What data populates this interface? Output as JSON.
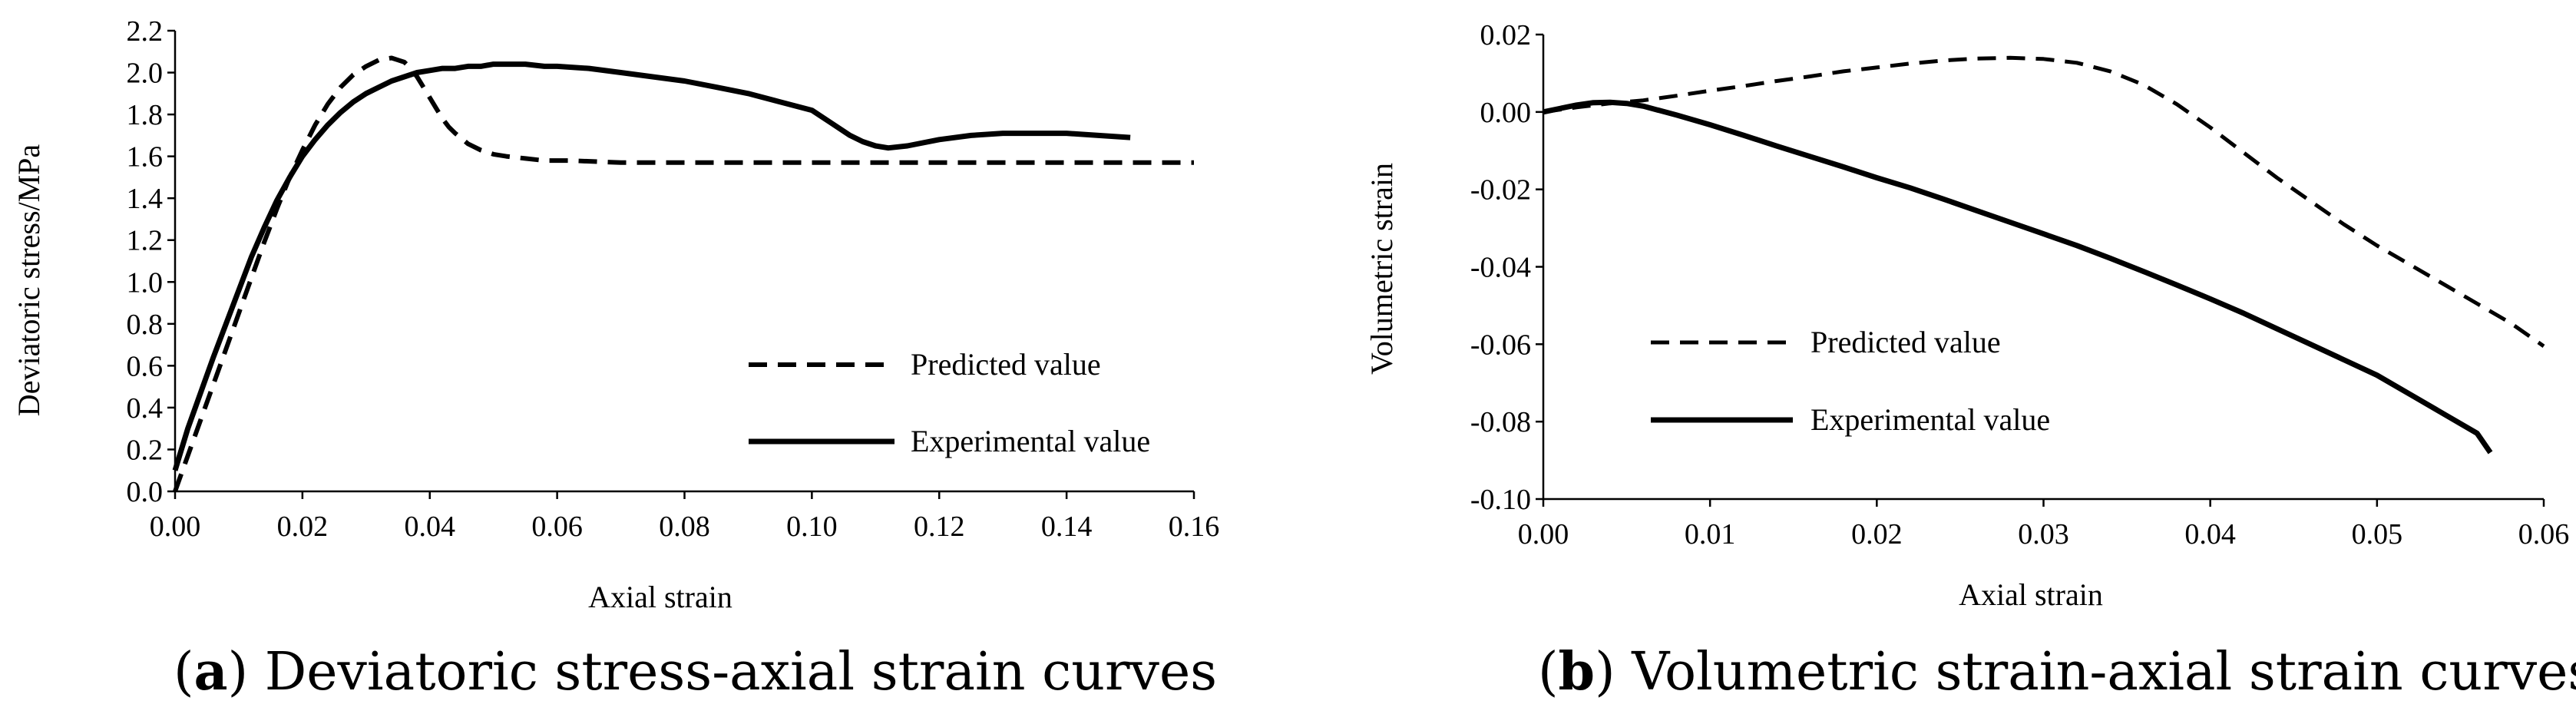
{
  "chart_data": [
    {
      "id": "a",
      "type": "line",
      "caption_letter": "a",
      "caption_text": " Deviatoric stress-axial strain curves",
      "xlabel": "Axial strain",
      "ylabel": "Deviatoric stress/MPa",
      "xlim": [
        0,
        0.16
      ],
      "ylim": [
        0,
        2.2
      ],
      "xticks": [
        "0.00",
        "0.02",
        "0.04",
        "0.06",
        "0.08",
        "0.10",
        "0.12",
        "0.14",
        "0.16"
      ],
      "yticks": [
        "0.0",
        "0.2",
        "0.4",
        "0.6",
        "0.8",
        "1.0",
        "1.2",
        "1.4",
        "1.6",
        "1.8",
        "2.0",
        "2.2"
      ],
      "legend_position": "lower-right",
      "series": [
        {
          "name": "Predicted value",
          "style": "dashed",
          "x": [
            0,
            0.002,
            0.004,
            0.006,
            0.008,
            0.01,
            0.012,
            0.014,
            0.016,
            0.018,
            0.02,
            0.022,
            0.024,
            0.026,
            0.028,
            0.03,
            0.032,
            0.034,
            0.035,
            0.036,
            0.037,
            0.038,
            0.039,
            0.04,
            0.041,
            0.042,
            0.043,
            0.044,
            0.046,
            0.048,
            0.05,
            0.052,
            0.055,
            0.058,
            0.062,
            0.07,
            0.08,
            0.1,
            0.12,
            0.14,
            0.16
          ],
          "y": [
            0.0,
            0.17,
            0.34,
            0.51,
            0.68,
            0.85,
            1.02,
            1.19,
            1.35,
            1.5,
            1.63,
            1.75,
            1.85,
            1.93,
            1.99,
            2.03,
            2.06,
            2.07,
            2.06,
            2.05,
            2.02,
            1.98,
            1.93,
            1.88,
            1.83,
            1.78,
            1.74,
            1.71,
            1.66,
            1.63,
            1.61,
            1.6,
            1.59,
            1.58,
            1.58,
            1.57,
            1.57,
            1.57,
            1.57,
            1.57,
            1.57
          ]
        },
        {
          "name": "Experimental value",
          "style": "solid",
          "x": [
            0,
            0.002,
            0.004,
            0.006,
            0.008,
            0.01,
            0.012,
            0.014,
            0.016,
            0.018,
            0.02,
            0.022,
            0.024,
            0.026,
            0.028,
            0.03,
            0.032,
            0.034,
            0.036,
            0.038,
            0.04,
            0.042,
            0.044,
            0.046,
            0.048,
            0.05,
            0.052,
            0.055,
            0.058,
            0.06,
            0.065,
            0.07,
            0.075,
            0.08,
            0.085,
            0.09,
            0.095,
            0.1,
            0.103,
            0.106,
            0.108,
            0.11,
            0.112,
            0.115,
            0.12,
            0.125,
            0.13,
            0.135,
            0.14,
            0.145,
            0.15
          ],
          "y": [
            0.1,
            0.3,
            0.47,
            0.64,
            0.8,
            0.96,
            1.12,
            1.26,
            1.39,
            1.5,
            1.6,
            1.68,
            1.75,
            1.81,
            1.86,
            1.9,
            1.93,
            1.96,
            1.98,
            2.0,
            2.01,
            2.02,
            2.02,
            2.03,
            2.03,
            2.04,
            2.04,
            2.04,
            2.03,
            2.03,
            2.02,
            2.0,
            1.98,
            1.96,
            1.93,
            1.9,
            1.86,
            1.82,
            1.76,
            1.7,
            1.67,
            1.65,
            1.64,
            1.65,
            1.68,
            1.7,
            1.71,
            1.71,
            1.71,
            1.7,
            1.69
          ]
        }
      ]
    },
    {
      "id": "b",
      "type": "line",
      "caption_letter": "b",
      "caption_text": " Volumetric strain-axial strain curves",
      "xlabel": "Axial strain",
      "ylabel": "Volumetric  strain",
      "xlim": [
        0,
        0.06
      ],
      "ylim": [
        -0.1,
        0.02
      ],
      "xticks": [
        "0.00",
        "0.01",
        "0.02",
        "0.03",
        "0.04",
        "0.05",
        "0.06"
      ],
      "yticks": [
        "-0.10",
        "-0.08",
        "-0.06",
        "-0.04",
        "-0.02",
        "0.00",
        "0.02"
      ],
      "legend_position": "lower-left",
      "series": [
        {
          "name": "Predicted value",
          "style": "dashed",
          "x": [
            0,
            0.002,
            0.004,
            0.006,
            0.008,
            0.01,
            0.012,
            0.014,
            0.016,
            0.018,
            0.02,
            0.022,
            0.024,
            0.026,
            0.028,
            0.03,
            0.032,
            0.034,
            0.036,
            0.038,
            0.04,
            0.042,
            0.044,
            0.046,
            0.048,
            0.05,
            0.052,
            0.054,
            0.056,
            0.058,
            0.06
          ],
          "y": [
            0.0,
            0.0012,
            0.0022,
            0.003,
            0.0042,
            0.0055,
            0.0067,
            0.008,
            0.0092,
            0.0105,
            0.0115,
            0.0125,
            0.0133,
            0.0138,
            0.014,
            0.0137,
            0.0127,
            0.0105,
            0.007,
            0.002,
            -0.004,
            -0.0105,
            -0.017,
            -0.023,
            -0.029,
            -0.0345,
            -0.0395,
            -0.0445,
            -0.0495,
            -0.0545,
            -0.0605
          ]
        },
        {
          "name": "Experimental value",
          "style": "solid",
          "x": [
            0,
            0.002,
            0.003,
            0.004,
            0.005,
            0.006,
            0.008,
            0.01,
            0.012,
            0.014,
            0.016,
            0.018,
            0.02,
            0.022,
            0.024,
            0.026,
            0.028,
            0.03,
            0.032,
            0.034,
            0.036,
            0.038,
            0.04,
            0.042,
            0.044,
            0.046,
            0.048,
            0.05,
            0.052,
            0.054,
            0.056,
            0.0568
          ],
          "y": [
            0.0,
            0.0018,
            0.0024,
            0.0025,
            0.0022,
            0.0015,
            -0.0008,
            -0.0033,
            -0.006,
            -0.0088,
            -0.0115,
            -0.0142,
            -0.017,
            -0.0196,
            -0.0225,
            -0.0255,
            -0.0285,
            -0.0315,
            -0.0345,
            -0.0378,
            -0.0412,
            -0.0447,
            -0.0483,
            -0.052,
            -0.056,
            -0.06,
            -0.064,
            -0.068,
            -0.073,
            -0.078,
            -0.083,
            -0.088
          ]
        }
      ]
    }
  ]
}
